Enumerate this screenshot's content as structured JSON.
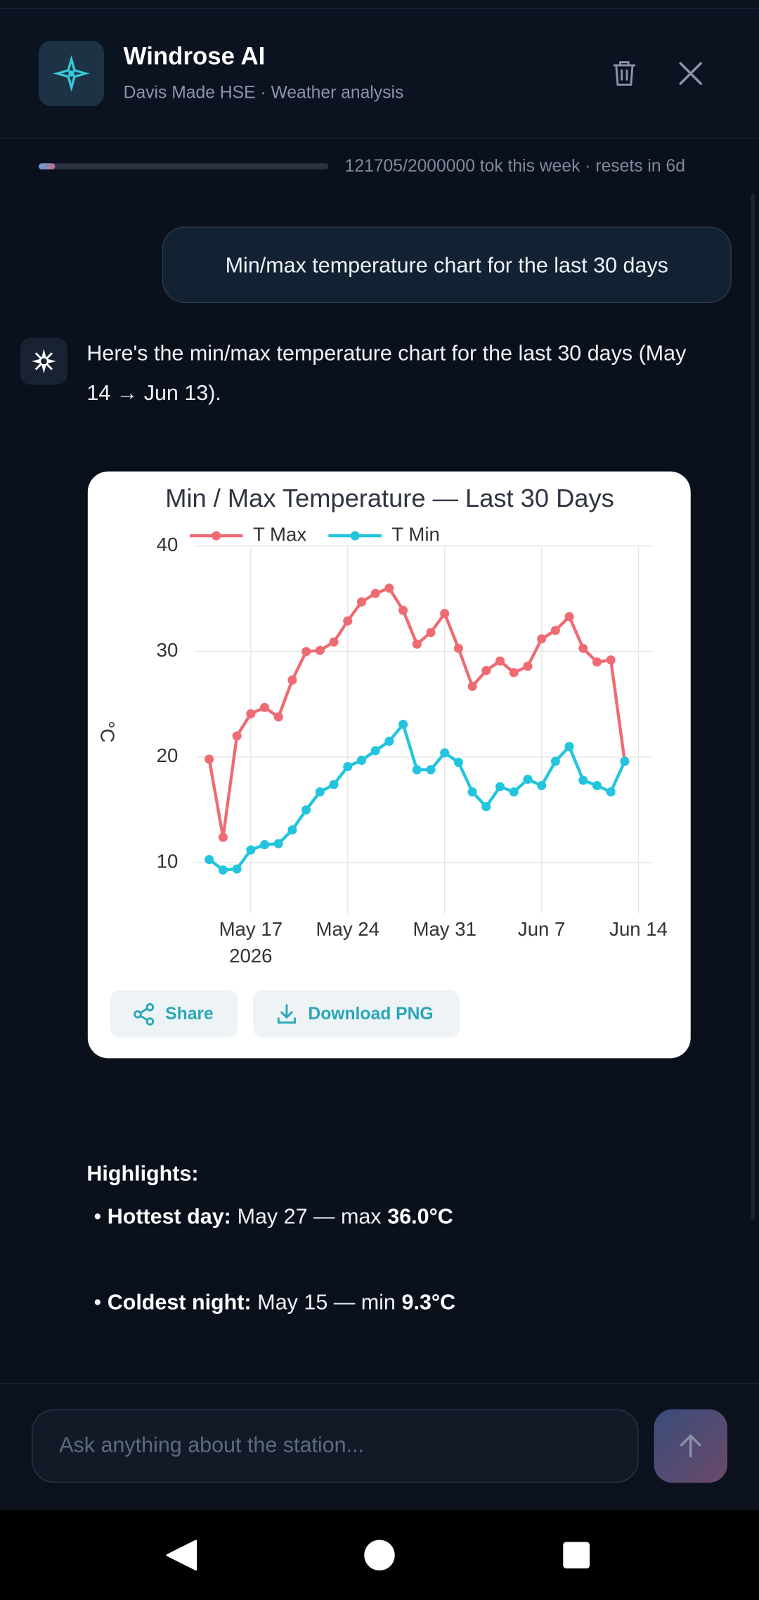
{
  "header": {
    "title": "Windrose AI",
    "subtitle": "Davis Made HSE · Weather analysis"
  },
  "usage": {
    "text": "121705/2000000 tok this week · resets in 6d"
  },
  "messages": [
    {
      "role": "user",
      "text": "Min/max temperature chart for the last 30 days"
    },
    {
      "role": "assistant",
      "text": "Here's the min/max temperature chart for the last 30 days (May 14 → Jun 13)."
    }
  ],
  "chart_data": {
    "type": "line",
    "title": "Min / Max Temperature — Last 30 Days",
    "y_label": "°C",
    "x": [
      "2026-05-14",
      "2026-05-15",
      "2026-05-16",
      "2026-05-17",
      "2026-05-18",
      "2026-05-19",
      "2026-05-20",
      "2026-05-21",
      "2026-05-22",
      "2026-05-23",
      "2026-05-24",
      "2026-05-25",
      "2026-05-26",
      "2026-05-27",
      "2026-05-28",
      "2026-05-29",
      "2026-05-30",
      "2026-05-31",
      "2026-06-01",
      "2026-06-02",
      "2026-06-03",
      "2026-06-04",
      "2026-06-05",
      "2026-06-06",
      "2026-06-07",
      "2026-06-08",
      "2026-06-09",
      "2026-06-10",
      "2026-06-11",
      "2026-06-12",
      "2026-06-13"
    ],
    "series": [
      {
        "name": "T Max",
        "color": "#ef6b73",
        "values": [
          19.8,
          12.4,
          22.0,
          24.1,
          24.7,
          23.8,
          27.3,
          30.0,
          30.1,
          30.9,
          32.9,
          34.7,
          35.5,
          36.0,
          33.9,
          30.7,
          31.8,
          33.6,
          30.3,
          26.7,
          28.2,
          29.1,
          28.0,
          28.6,
          31.2,
          32.0,
          33.3,
          30.3,
          29.0,
          29.2,
          19.6
        ]
      },
      {
        "name": "T Min",
        "color": "#22c5dd",
        "values": [
          10.3,
          9.3,
          9.4,
          11.2,
          11.7,
          11.8,
          13.1,
          15.0,
          16.7,
          17.4,
          19.1,
          19.7,
          20.6,
          21.5,
          23.1,
          18.8,
          18.8,
          20.4,
          19.5,
          16.7,
          15.3,
          17.2,
          16.7,
          17.9,
          17.3,
          19.6,
          21.0,
          17.8,
          17.3,
          16.7,
          19.6
        ]
      }
    ],
    "xlim": [
      "2026-05-13",
      "2026-06-15"
    ],
    "xticks": [
      {
        "value": "2026-05-17",
        "label": "May 17"
      },
      {
        "value": "2026-05-24",
        "label": "May 24"
      },
      {
        "value": "2026-05-31",
        "label": "May 31"
      },
      {
        "value": "2026-06-07",
        "label": "Jun 7"
      },
      {
        "value": "2026-06-14",
        "label": "Jun 14"
      }
    ],
    "x_year": "2026",
    "ylim": [
      5.2,
      40
    ],
    "yticks": [
      10,
      20,
      30,
      40
    ],
    "grid": true,
    "legend": "top-left"
  },
  "actions": [
    "Share",
    "Download PNG"
  ],
  "highlights": {
    "title": "Highlights:",
    "items": [
      {
        "label": "Hottest day:",
        "text": "May 27 — max",
        "value": "36.0°C"
      },
      {
        "label": "Coldest night:",
        "text": "May 15 — min",
        "value": "9.3°C"
      }
    ]
  },
  "input": {
    "placeholder": "Ask anything about the station..."
  }
}
